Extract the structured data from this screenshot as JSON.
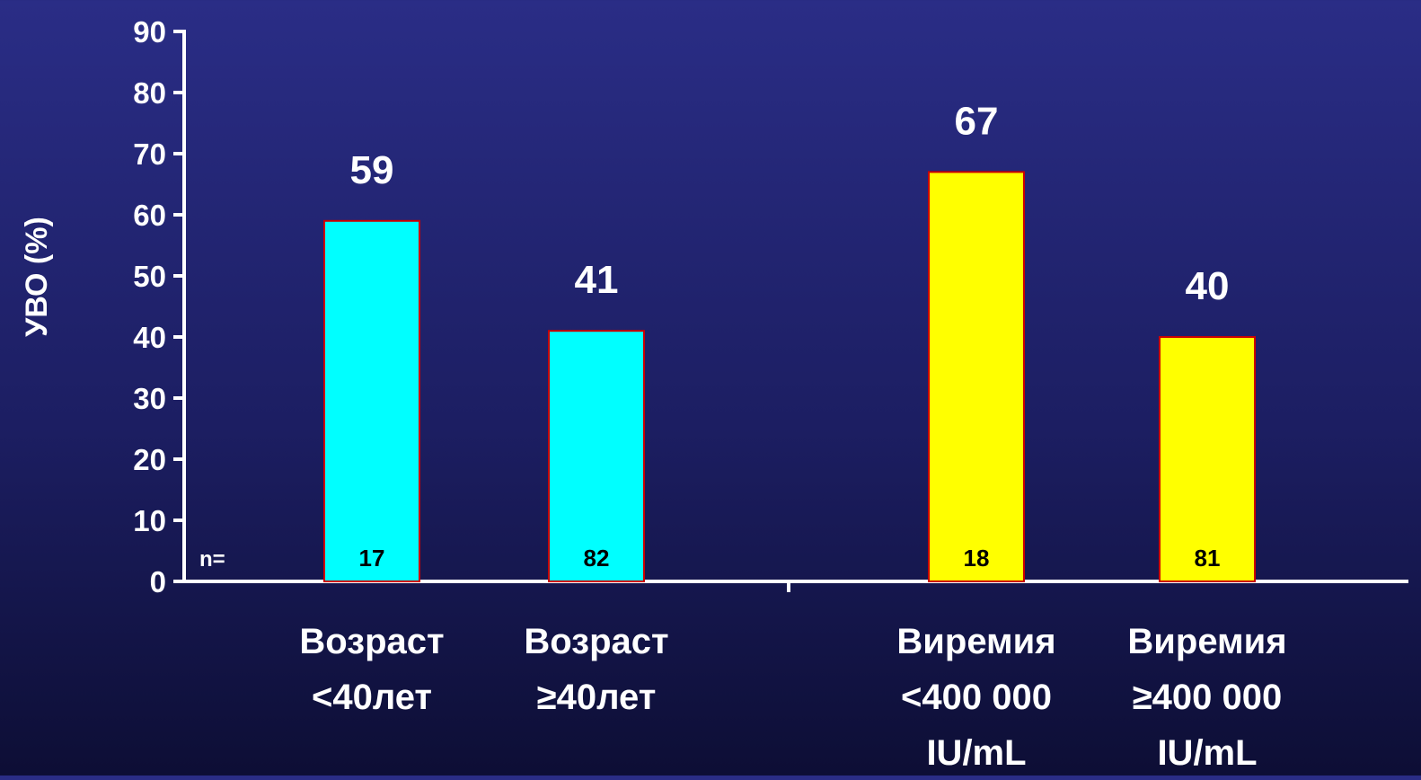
{
  "chart_data": {
    "type": "bar",
    "ylabel": "УВО (%)",
    "ylim": [
      0,
      90
    ],
    "yticks": [
      0,
      10,
      20,
      30,
      40,
      50,
      60,
      70,
      80,
      90
    ],
    "n_label": "n=",
    "groups": [
      {
        "color": "#00ffff",
        "bars": [
          {
            "label": [
              "Возраст",
              "<40лет"
            ],
            "value": 59,
            "n": "17"
          },
          {
            "label": [
              "Возраст",
              "≥40лет"
            ],
            "value": 41,
            "n": "82"
          }
        ]
      },
      {
        "color": "#ffff00",
        "bars": [
          {
            "label": [
              "Виремия",
              "<400 000",
              "IU/mL"
            ],
            "value": 67,
            "n": "18"
          },
          {
            "label": [
              "Виремия",
              "≥400 000",
              "IU/mL"
            ],
            "value": 40,
            "n": "81"
          }
        ]
      }
    ],
    "colors": {
      "axis": "#ffffff",
      "text": "#ffffff",
      "bar_border": "#cc0000",
      "n_text": "#000000"
    }
  }
}
